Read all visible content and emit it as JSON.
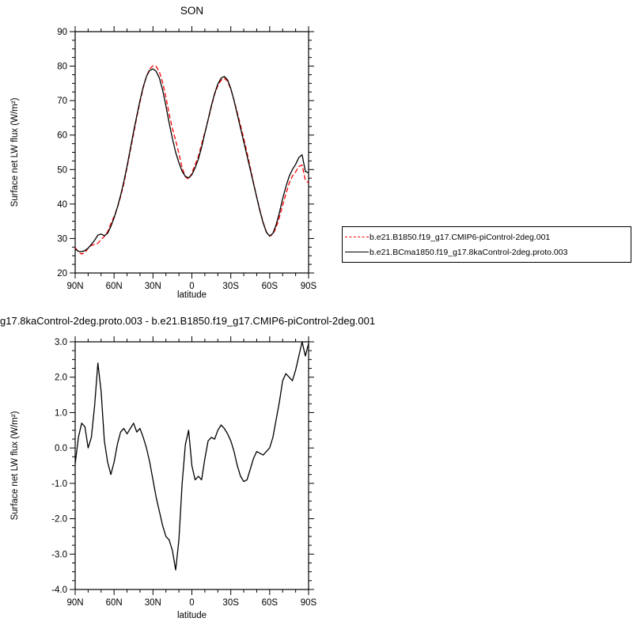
{
  "figure": {
    "background": "#ffffff",
    "axis_color": "#000000"
  },
  "chart_data": [
    {
      "id": "top",
      "type": "line",
      "title": "SON",
      "xlabel": "latitude",
      "ylabel": "Surface net LW flux (W/m²)",
      "xlim": [
        90,
        -90
      ],
      "ylim": [
        20,
        90
      ],
      "xtick_values": [
        90,
        60,
        30,
        0,
        -30,
        -60,
        -90
      ],
      "xtick_labels": [
        "90N",
        "60N",
        "30N",
        "0",
        "30S",
        "60S",
        "90S"
      ],
      "ytick_values": [
        20,
        30,
        40,
        50,
        60,
        70,
        80,
        90
      ],
      "ytick_labels": [
        "20",
        "30",
        "40",
        "50",
        "60",
        "70",
        "80",
        "90"
      ],
      "x_minor_step": 10,
      "y_minor_step": 2.5,
      "grid": false,
      "legend_position": "outside-right",
      "x": [
        90,
        87.5,
        85,
        82.5,
        80,
        77.5,
        75,
        72.5,
        70,
        67.5,
        65,
        62.5,
        60,
        57.5,
        55,
        52.5,
        50,
        47.5,
        45,
        42.5,
        40,
        37.5,
        35,
        32.5,
        30,
        27.5,
        25,
        22.5,
        20,
        17.5,
        15,
        12.5,
        10,
        7.5,
        5,
        2.5,
        0,
        -2.5,
        -5,
        -7.5,
        -10,
        -12.5,
        -15,
        -17.5,
        -20,
        -22.5,
        -25,
        -27.5,
        -30,
        -32.5,
        -35,
        -37.5,
        -40,
        -42.5,
        -45,
        -47.5,
        -50,
        -52.5,
        -55,
        -57.5,
        -60,
        -62.5,
        -65,
        -67.5,
        -70,
        -72.5,
        -75,
        -77.5,
        -80,
        -82.5,
        -85,
        -87.5,
        -90
      ],
      "series": [
        {
          "name": "b.e21.B1850.f19_g17.CMIP6-piControl-2deg.001",
          "color": "#ff0000",
          "style": "dashed",
          "values": [
            27.4,
            26.0,
            25.5,
            25.9,
            27.2,
            28.0,
            28.3,
            28.6,
            29.7,
            30.6,
            31.9,
            34.3,
            36.4,
            38.9,
            42.1,
            45.9,
            50.6,
            55.5,
            60.3,
            65.1,
            69.5,
            73.7,
            77.0,
            79.2,
            80.1,
            79.9,
            78.3,
            75.2,
            71.0,
            66.1,
            61.9,
            58.5,
            54.6,
            50.5,
            47.9,
            47.1,
            49.0,
            51.4,
            53.8,
            57.4,
            60.8,
            64.3,
            68.2,
            71.8,
            74.3,
            75.9,
            76.5,
            75.6,
            73.3,
            70.1,
            66.5,
            62.8,
            59.0,
            54.9,
            50.6,
            46.3,
            42.1,
            38.2,
            34.7,
            31.9,
            30.7,
            31.2,
            33.2,
            36.2,
            39.6,
            42.9,
            46.0,
            48.1,
            49.3,
            50.9,
            51.3,
            46.9,
            46.1
          ]
        },
        {
          "name": "b.e21.BCma1850.f19_g17.8kaControl-2deg.proto.003",
          "color": "#000000",
          "style": "solid",
          "values": [
            27.0,
            26.3,
            26.2,
            26.5,
            27.2,
            28.3,
            29.5,
            31.0,
            31.3,
            30.8,
            31.5,
            33.5,
            36.0,
            39.0,
            42.5,
            46.5,
            51.0,
            56.0,
            61.0,
            65.5,
            70.0,
            74.0,
            77.0,
            78.8,
            79.2,
            78.5,
            76.5,
            73.0,
            68.5,
            63.5,
            59.0,
            55.0,
            52.0,
            49.5,
            48.0,
            47.6,
            48.5,
            50.5,
            53.0,
            56.5,
            60.5,
            64.5,
            68.5,
            72.0,
            74.8,
            76.5,
            77.0,
            76.0,
            73.5,
            70.0,
            66.0,
            62.0,
            58.0,
            54.0,
            50.0,
            46.0,
            42.0,
            38.0,
            34.5,
            31.8,
            30.7,
            31.5,
            34.0,
            37.5,
            41.5,
            45.0,
            48.0,
            50.0,
            51.5,
            53.5,
            54.3,
            49.5,
            49.0
          ]
        }
      ]
    },
    {
      "id": "bottom",
      "type": "line",
      "title": "g17.8kaControl-2deg.proto.003 - b.e21.B1850.f19_g17.CMIP6-piControl-2deg.001",
      "xlabel": "latitude",
      "ylabel": "Surface net LW flux (W/m²)",
      "xlim": [
        90,
        -90
      ],
      "ylim": [
        -4,
        3
      ],
      "xtick_values": [
        90,
        60,
        30,
        0,
        -30,
        -60,
        -90
      ],
      "xtick_labels": [
        "90N",
        "60N",
        "30N",
        "0",
        "30S",
        "60S",
        "90S"
      ],
      "ytick_values": [
        -4,
        -3,
        -2,
        -1,
        0,
        1,
        2,
        3
      ],
      "ytick_labels": [
        "-4.0",
        "-3.0",
        "-2.0",
        "-1.0",
        "0.0",
        "1.0",
        "2.0",
        "3.0"
      ],
      "x_minor_step": 10,
      "y_minor_step": 0.25,
      "grid": false,
      "x": [
        90,
        87.5,
        85,
        82.5,
        80,
        77.5,
        75,
        72.5,
        70,
        67.5,
        65,
        62.5,
        60,
        57.5,
        55,
        52.5,
        50,
        47.5,
        45,
        42.5,
        40,
        37.5,
        35,
        32.5,
        30,
        27.5,
        25,
        22.5,
        20,
        17.5,
        15,
        12.5,
        10,
        7.5,
        5,
        2.5,
        0,
        -2.5,
        -5,
        -7.5,
        -10,
        -12.5,
        -15,
        -17.5,
        -20,
        -22.5,
        -25,
        -27.5,
        -30,
        -32.5,
        -35,
        -37.5,
        -40,
        -42.5,
        -45,
        -47.5,
        -50,
        -52.5,
        -55,
        -57.5,
        -60,
        -62.5,
        -65,
        -67.5,
        -70,
        -72.5,
        -75,
        -77.5,
        -80,
        -82.5,
        -85,
        -87.5,
        -90
      ],
      "series": [
        {
          "color": "#000000",
          "style": "solid",
          "values": [
            -0.45,
            0.3,
            0.7,
            0.6,
            0.0,
            0.3,
            1.2,
            2.4,
            1.6,
            0.2,
            -0.4,
            -0.75,
            -0.4,
            0.1,
            0.45,
            0.55,
            0.4,
            0.55,
            0.7,
            0.45,
            0.55,
            0.3,
            0.0,
            -0.4,
            -0.9,
            -1.4,
            -1.8,
            -2.2,
            -2.5,
            -2.6,
            -2.9,
            -3.45,
            -2.6,
            -1.0,
            0.1,
            0.5,
            -0.5,
            -0.9,
            -0.8,
            -0.9,
            -0.3,
            0.2,
            0.3,
            0.25,
            0.5,
            0.65,
            0.55,
            0.4,
            0.2,
            -0.1,
            -0.5,
            -0.8,
            -0.95,
            -0.9,
            -0.6,
            -0.3,
            -0.1,
            -0.15,
            -0.2,
            -0.1,
            0.0,
            0.3,
            0.8,
            1.3,
            1.9,
            2.1,
            2.0,
            1.9,
            2.2,
            2.6,
            3.0,
            2.6,
            2.95
          ]
        }
      ]
    }
  ],
  "legend": {
    "entries": [
      {
        "label": "b.e21.B1850.f19_g17.CMIP6-piControl-2deg.001",
        "line": "red-dashed"
      },
      {
        "label": "b.e21.BCma1850.f19_g17.8kaControl-2deg.proto.003",
        "line": "black-solid"
      }
    ]
  }
}
